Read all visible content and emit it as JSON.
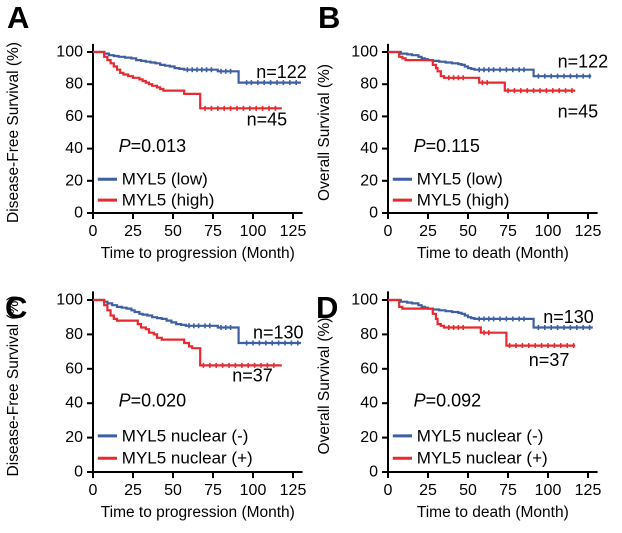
{
  "figure": {
    "background": "#ffffff",
    "text_color": "#000000",
    "axis_color": "#000000",
    "color_group1": "#3e5fa4",
    "color_group2": "#e62a2f"
  },
  "chart_data": [
    {
      "type": "line",
      "subtype": "kaplan-meier-step",
      "panel": "A",
      "ylabel": "Disease-Free Survival (%)",
      "xlabel": "Time to progression (Month)",
      "xticks": [
        0,
        25,
        50,
        75,
        100,
        125
      ],
      "yticks": [
        0,
        20,
        40,
        60,
        80,
        100
      ],
      "xlim": [
        0,
        131
      ],
      "ylim": [
        0,
        106
      ],
      "grid": false,
      "legend_position": "lower-left",
      "legend_y": [
        21,
        8
      ],
      "p_value": "P=0.013",
      "p_pos": [
        16,
        38
      ],
      "legend": [
        {
          "label": "MYL5 (low)",
          "color": "#3e5fa4"
        },
        {
          "label": "MYL5 (high)",
          "color": "#e62a2f"
        }
      ],
      "annotations": [
        {
          "text": "n=122",
          "x": 102,
          "y": 87.5
        },
        {
          "text": "n=45",
          "x": 96,
          "y": 58
        }
      ],
      "series": [
        {
          "name": "MYL5 (low)",
          "n": 122,
          "color": "#3e5fa4",
          "points": [
            [
              0,
              100
            ],
            [
              6,
              100
            ],
            [
              7,
              99
            ],
            [
              10,
              98
            ],
            [
              13,
              97.5
            ],
            [
              16,
              97
            ],
            [
              20,
              96.5
            ],
            [
              24,
              96
            ],
            [
              27,
              95
            ],
            [
              30,
              94.5
            ],
            [
              33,
              94
            ],
            [
              36,
              93.5
            ],
            [
              39,
              93
            ],
            [
              42,
              92
            ],
            [
              45,
              91.5
            ],
            [
              48,
              91
            ],
            [
              51,
              90
            ],
            [
              54,
              89.5
            ],
            [
              57,
              89
            ],
            [
              76,
              89
            ],
            [
              78,
              88
            ],
            [
              89,
              88
            ],
            [
              91,
              81
            ],
            [
              130,
              81
            ]
          ],
          "censor_x": [
            59,
            62,
            65,
            68,
            71,
            74,
            80,
            83,
            86,
            96,
            99,
            103,
            107,
            111,
            115,
            119,
            123,
            127
          ]
        },
        {
          "name": "MYL5 (high)",
          "n": 45,
          "color": "#e62a2f",
          "points": [
            [
              0,
              100
            ],
            [
              6,
              100
            ],
            [
              7,
              97
            ],
            [
              9,
              95
            ],
            [
              11,
              93
            ],
            [
              13,
              91
            ],
            [
              15,
              89
            ],
            [
              17,
              87
            ],
            [
              19,
              86
            ],
            [
              22,
              85
            ],
            [
              25,
              84
            ],
            [
              29,
              83
            ],
            [
              31,
              82
            ],
            [
              33,
              81
            ],
            [
              35,
              80
            ],
            [
              37,
              79
            ],
            [
              40,
              78
            ],
            [
              42,
              77
            ],
            [
              44,
              76
            ],
            [
              55,
              76
            ],
            [
              57,
              74
            ],
            [
              66,
              74
            ],
            [
              67,
              65
            ],
            [
              118,
              65
            ]
          ],
          "censor_x": [
            70,
            74,
            78,
            82,
            86,
            90,
            94,
            98,
            102,
            106,
            110,
            114
          ]
        }
      ]
    },
    {
      "type": "line",
      "subtype": "kaplan-meier-step",
      "panel": "B",
      "ylabel": "Overall Survival (%)",
      "xlabel": "Time to death (Month)",
      "xticks": [
        0,
        25,
        50,
        75,
        100,
        125
      ],
      "yticks": [
        0,
        20,
        40,
        60,
        80,
        100
      ],
      "xlim": [
        0,
        131
      ],
      "ylim": [
        0,
        106
      ],
      "grid": false,
      "legend_position": "lower-left",
      "legend_y": [
        21,
        8
      ],
      "p_value": "P=0.115",
      "p_pos": [
        16,
        38
      ],
      "legend": [
        {
          "label": "MYL5 (low)",
          "color": "#3e5fa4"
        },
        {
          "label": "MYL5 (high)",
          "color": "#e62a2f"
        }
      ],
      "annotations": [
        {
          "text": "n=122",
          "x": 106,
          "y": 94
        },
        {
          "text": "n=45",
          "x": 106,
          "y": 63
        }
      ],
      "series": [
        {
          "name": "MYL5 (low)",
          "n": 122,
          "color": "#3e5fa4",
          "points": [
            [
              0,
              100
            ],
            [
              7,
              100
            ],
            [
              8,
              99
            ],
            [
              12,
              98.5
            ],
            [
              15,
              98
            ],
            [
              19,
              97
            ],
            [
              21,
              96
            ],
            [
              23,
              95.5
            ],
            [
              25,
              95
            ],
            [
              28,
              94.5
            ],
            [
              32,
              94
            ],
            [
              36,
              93.5
            ],
            [
              40,
              93
            ],
            [
              44,
              92.5
            ],
            [
              46,
              92
            ],
            [
              48,
              91
            ],
            [
              50,
              90
            ],
            [
              52,
              89.5
            ],
            [
              54,
              89
            ],
            [
              89,
              89
            ],
            [
              91,
              85
            ],
            [
              127,
              85
            ]
          ],
          "censor_x": [
            57,
            60,
            63,
            66,
            70,
            74,
            78,
            82,
            85,
            94,
            98,
            102,
            106,
            110,
            114,
            118,
            122,
            126
          ]
        },
        {
          "name": "MYL5 (high)",
          "n": 45,
          "color": "#e62a2f",
          "points": [
            [
              0,
              100
            ],
            [
              7,
              97
            ],
            [
              9,
              96
            ],
            [
              11,
              95
            ],
            [
              26,
              95
            ],
            [
              28,
              92
            ],
            [
              30,
              90
            ],
            [
              31,
              88
            ],
            [
              33,
              85
            ],
            [
              35,
              84
            ],
            [
              55,
              84
            ],
            [
              57,
              81
            ],
            [
              71,
              81
            ],
            [
              73,
              76
            ],
            [
              117,
              76
            ]
          ],
          "censor_x": [
            38,
            41,
            44,
            47,
            59,
            62,
            75,
            79,
            83,
            87,
            91,
            95,
            99,
            103,
            107,
            111,
            115
          ]
        }
      ]
    },
    {
      "type": "line",
      "subtype": "kaplan-meier-step",
      "panel": "C",
      "ylabel": "Disease-Free Survival (%)",
      "xlabel": "Time to progression (Month)",
      "xticks": [
        0,
        25,
        50,
        75,
        100,
        125
      ],
      "yticks": [
        0,
        20,
        40,
        60,
        80,
        100
      ],
      "xlim": [
        0,
        131
      ],
      "ylim": [
        0,
        106
      ],
      "grid": false,
      "legend_position": "lower-left",
      "legend_y": [
        21,
        8
      ],
      "p_value": "P=0.020",
      "p_pos": [
        16,
        38
      ],
      "legend": [
        {
          "label": "MYL5 nuclear (-)",
          "color": "#3e5fa4"
        },
        {
          "label": "MYL5 nuclear (+)",
          "color": "#e62a2f"
        }
      ],
      "annotations": [
        {
          "text": "n=130",
          "x": 100,
          "y": 81
        },
        {
          "text": "n=37",
          "x": 87,
          "y": 56
        }
      ],
      "series": [
        {
          "name": "MYL5 nuclear (-)",
          "n": 130,
          "color": "#3e5fa4",
          "points": [
            [
              0,
              100
            ],
            [
              6,
              100
            ],
            [
              7,
              99
            ],
            [
              9,
              98
            ],
            [
              12,
              97
            ],
            [
              15,
              96
            ],
            [
              18,
              95.5
            ],
            [
              21,
              95
            ],
            [
              24,
              94
            ],
            [
              26,
              93
            ],
            [
              29,
              92
            ],
            [
              31,
              91.5
            ],
            [
              34,
              91
            ],
            [
              37,
              90
            ],
            [
              40,
              89.5
            ],
            [
              43,
              89
            ],
            [
              46,
              88
            ],
            [
              49,
              87
            ],
            [
              52,
              86
            ],
            [
              55,
              85.5
            ],
            [
              58,
              85
            ],
            [
              75,
              85
            ],
            [
              78,
              84
            ],
            [
              89,
              84
            ],
            [
              91,
              75
            ],
            [
              130,
              75
            ]
          ],
          "censor_x": [
            60,
            63,
            66,
            70,
            73,
            80,
            83,
            86,
            96,
            100,
            104,
            108,
            112,
            116,
            120,
            124,
            128
          ]
        },
        {
          "name": "MYL5 nuclear (+)",
          "n": 37,
          "color": "#e62a2f",
          "points": [
            [
              0,
              100
            ],
            [
              6,
              100
            ],
            [
              7,
              97
            ],
            [
              9,
              94
            ],
            [
              11,
              91
            ],
            [
              13,
              89
            ],
            [
              15,
              88
            ],
            [
              26,
              88
            ],
            [
              28,
              86
            ],
            [
              30,
              84
            ],
            [
              33,
              83
            ],
            [
              35,
              81
            ],
            [
              38,
              80
            ],
            [
              40,
              78
            ],
            [
              43,
              77
            ],
            [
              55,
              77
            ],
            [
              57,
              75
            ],
            [
              60,
              73
            ],
            [
              62,
              72
            ],
            [
              66,
              72
            ],
            [
              67,
              62
            ],
            [
              118,
              62
            ]
          ],
          "censor_x": [
            69,
            73,
            77,
            81,
            85,
            89,
            93,
            97,
            101,
            105,
            109,
            113
          ]
        }
      ]
    },
    {
      "type": "line",
      "subtype": "kaplan-meier-step",
      "panel": "D",
      "ylabel": "Overall Survival (%)",
      "xlabel": "Time to death (Month)",
      "xticks": [
        0,
        25,
        50,
        75,
        100,
        125
      ],
      "yticks": [
        0,
        20,
        40,
        60,
        80,
        100
      ],
      "xlim": [
        0,
        131
      ],
      "ylim": [
        0,
        106
      ],
      "grid": false,
      "legend_position": "lower-left",
      "legend_y": [
        21,
        8
      ],
      "p_value": "P=0.092",
      "p_pos": [
        16,
        38
      ],
      "legend": [
        {
          "label": "MYL5 nuclear (-)",
          "color": "#3e5fa4"
        },
        {
          "label": "MYL5 nuclear (+)",
          "color": "#e62a2f"
        }
      ],
      "annotations": [
        {
          "text": "n=130",
          "x": 97,
          "y": 90
        },
        {
          "text": "n=37",
          "x": 88,
          "y": 65
        }
      ],
      "series": [
        {
          "name": "MYL5 nuclear (-)",
          "n": 130,
          "color": "#3e5fa4",
          "points": [
            [
              0,
              100
            ],
            [
              7,
              100
            ],
            [
              8,
              99
            ],
            [
              12,
              98.5
            ],
            [
              15,
              98
            ],
            [
              19,
              97
            ],
            [
              21,
              96
            ],
            [
              23,
              95.5
            ],
            [
              25,
              95
            ],
            [
              28,
              94.5
            ],
            [
              32,
              94
            ],
            [
              36,
              93.5
            ],
            [
              40,
              93
            ],
            [
              44,
              92.5
            ],
            [
              46,
              92
            ],
            [
              48,
              91
            ],
            [
              50,
              90
            ],
            [
              52,
              89.5
            ],
            [
              54,
              89
            ],
            [
              89,
              89
            ],
            [
              91,
              84
            ],
            [
              128,
              84
            ]
          ],
          "censor_x": [
            57,
            60,
            63,
            66,
            70,
            74,
            78,
            82,
            85,
            94,
            98,
            102,
            106,
            110,
            114,
            118,
            122,
            126
          ]
        },
        {
          "name": "MYL5 nuclear (+)",
          "n": 37,
          "color": "#e62a2f",
          "points": [
            [
              0,
              100
            ],
            [
              7,
              96
            ],
            [
              9,
              95
            ],
            [
              26,
              95
            ],
            [
              28,
              92
            ],
            [
              30,
              89
            ],
            [
              31,
              86
            ],
            [
              33,
              85
            ],
            [
              35,
              84
            ],
            [
              55,
              84
            ],
            [
              58,
              81
            ],
            [
              72,
              81
            ],
            [
              74,
              73.5
            ],
            [
              117,
              73.5
            ]
          ],
          "censor_x": [
            38,
            41,
            44,
            47,
            60,
            63,
            76,
            80,
            84,
            88,
            92,
            96,
            100,
            104,
            108,
            112,
            116
          ]
        }
      ]
    }
  ]
}
